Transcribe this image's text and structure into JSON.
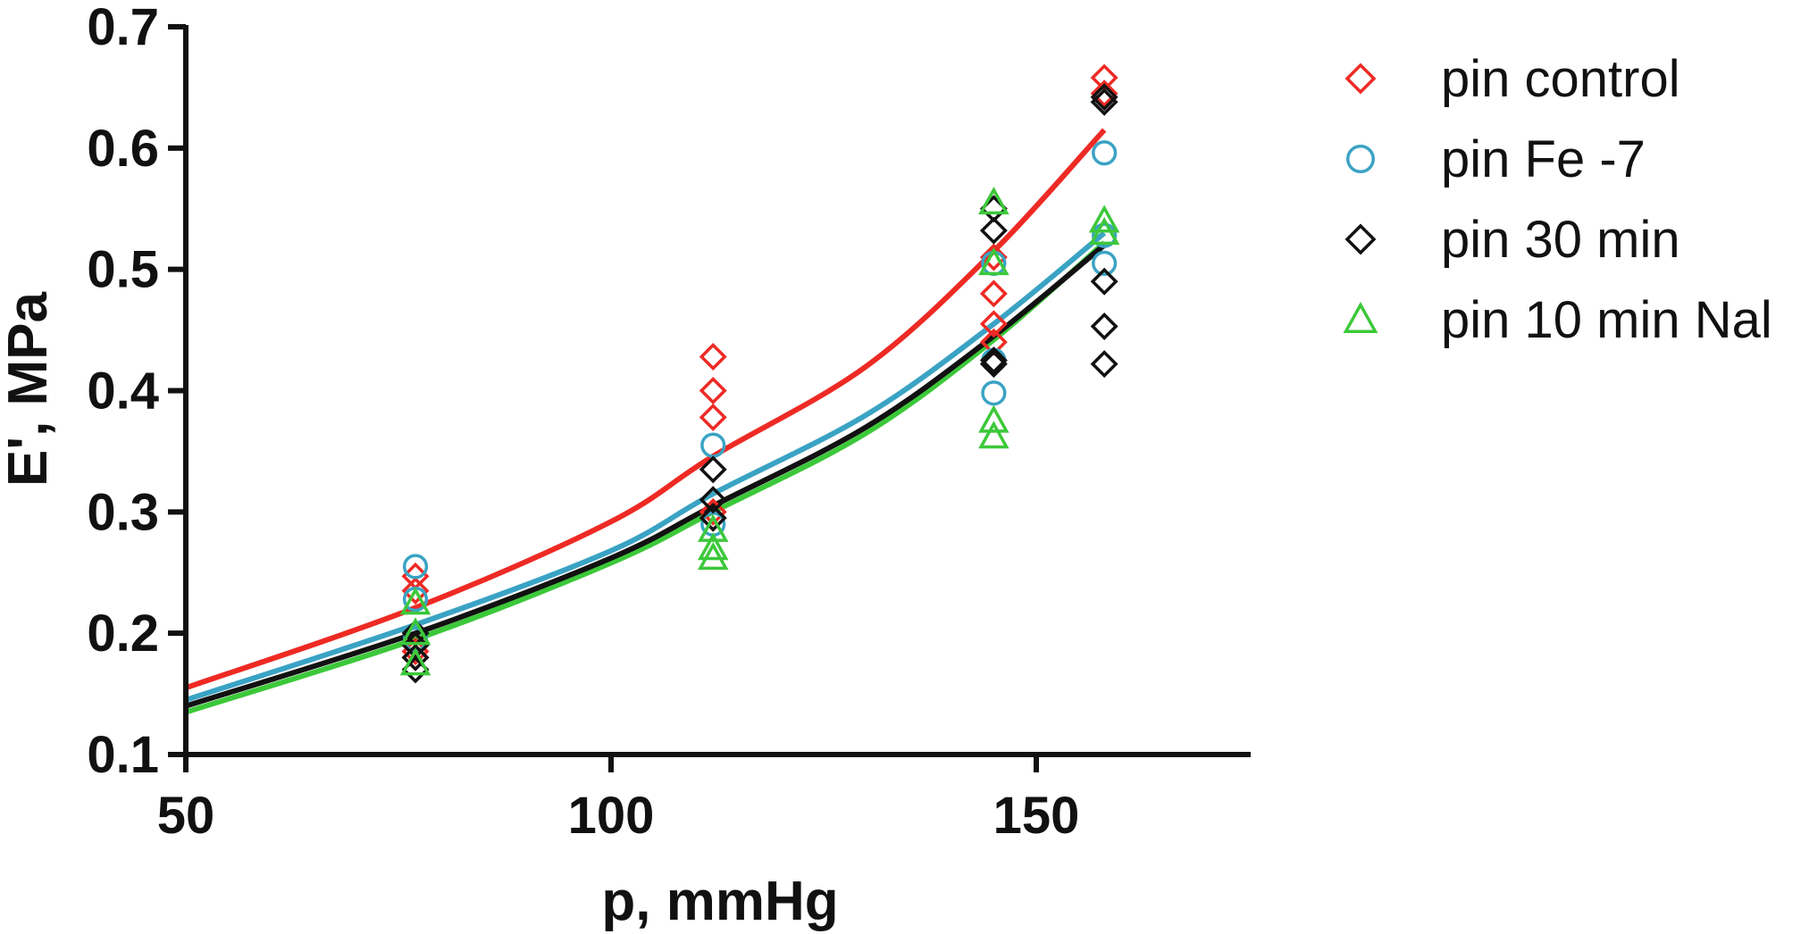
{
  "chart_data": {
    "type": "scatter",
    "title": "",
    "xlabel": "p, mmHg",
    "ylabel": "E', MPa",
    "xlim": [
      50,
      175
    ],
    "ylim": [
      0.1,
      0.7
    ],
    "xticks": [
      50,
      100,
      150
    ],
    "xtick_labels": [
      "50",
      "100",
      "150"
    ],
    "yticks": [
      0.1,
      0.2,
      0.3,
      0.4,
      0.5,
      0.6,
      0.7
    ],
    "ytick_labels": [
      "0.1",
      "0.2",
      "0.3",
      "0.4",
      "0.5",
      "0.6",
      "0.7"
    ],
    "grid": false,
    "legend_position": "right",
    "series": [
      {
        "name": "pin control",
        "marker": "diamond",
        "color": "#ee2a24",
        "points": [
          {
            "x": 77,
            "y": 0.247
          },
          {
            "x": 77,
            "y": 0.235
          },
          {
            "x": 77,
            "y": 0.19
          },
          {
            "x": 77,
            "y": 0.185
          },
          {
            "x": 77,
            "y": 0.18
          },
          {
            "x": 112,
            "y": 0.428
          },
          {
            "x": 112,
            "y": 0.4
          },
          {
            "x": 112,
            "y": 0.378
          },
          {
            "x": 112,
            "y": 0.3
          },
          {
            "x": 112,
            "y": 0.295
          },
          {
            "x": 145,
            "y": 0.51
          },
          {
            "x": 145,
            "y": 0.48
          },
          {
            "x": 145,
            "y": 0.455
          },
          {
            "x": 145,
            "y": 0.44
          },
          {
            "x": 158,
            "y": 0.658
          },
          {
            "x": 158,
            "y": 0.645
          }
        ],
        "fit": [
          {
            "x": 50,
            "y": 0.155
          },
          {
            "x": 77,
            "y": 0.221
          },
          {
            "x": 100,
            "y": 0.292
          },
          {
            "x": 112,
            "y": 0.346
          },
          {
            "x": 130,
            "y": 0.42
          },
          {
            "x": 145,
            "y": 0.515
          },
          {
            "x": 158,
            "y": 0.615
          }
        ]
      },
      {
        "name": "pin Fe -7",
        "marker": "circle",
        "color": "#3aa3c4",
        "points": [
          {
            "x": 77,
            "y": 0.255
          },
          {
            "x": 77,
            "y": 0.228
          },
          {
            "x": 77,
            "y": 0.195
          },
          {
            "x": 112,
            "y": 0.355
          },
          {
            "x": 112,
            "y": 0.29
          },
          {
            "x": 145,
            "y": 0.505
          },
          {
            "x": 145,
            "y": 0.425
          },
          {
            "x": 145,
            "y": 0.398
          },
          {
            "x": 158,
            "y": 0.596
          },
          {
            "x": 158,
            "y": 0.528
          },
          {
            "x": 158,
            "y": 0.505
          }
        ],
        "fit": [
          {
            "x": 50,
            "y": 0.145
          },
          {
            "x": 77,
            "y": 0.207
          },
          {
            "x": 100,
            "y": 0.268
          },
          {
            "x": 112,
            "y": 0.315
          },
          {
            "x": 130,
            "y": 0.38
          },
          {
            "x": 145,
            "y": 0.455
          },
          {
            "x": 158,
            "y": 0.53
          }
        ]
      },
      {
        "name": "pin 30 min",
        "marker": "diamond",
        "color": "#111111",
        "points": [
          {
            "x": 77,
            "y": 0.2
          },
          {
            "x": 77,
            "y": 0.19
          },
          {
            "x": 77,
            "y": 0.18
          },
          {
            "x": 77,
            "y": 0.17
          },
          {
            "x": 112,
            "y": 0.335
          },
          {
            "x": 112,
            "y": 0.31
          },
          {
            "x": 112,
            "y": 0.295
          },
          {
            "x": 145,
            "y": 0.55
          },
          {
            "x": 145,
            "y": 0.532
          },
          {
            "x": 145,
            "y": 0.425
          },
          {
            "x": 145,
            "y": 0.422
          },
          {
            "x": 158,
            "y": 0.642
          },
          {
            "x": 158,
            "y": 0.638
          },
          {
            "x": 158,
            "y": 0.49
          },
          {
            "x": 158,
            "y": 0.453
          },
          {
            "x": 158,
            "y": 0.422
          }
        ],
        "fit": [
          {
            "x": 50,
            "y": 0.14
          },
          {
            "x": 77,
            "y": 0.2
          },
          {
            "x": 100,
            "y": 0.262
          },
          {
            "x": 112,
            "y": 0.305
          },
          {
            "x": 130,
            "y": 0.37
          },
          {
            "x": 145,
            "y": 0.445
          },
          {
            "x": 158,
            "y": 0.52
          }
        ]
      },
      {
        "name": "pin 10 min Nal",
        "marker": "triangle",
        "color": "#3cc83a",
        "points": [
          {
            "x": 77,
            "y": 0.225
          },
          {
            "x": 77,
            "y": 0.2
          },
          {
            "x": 77,
            "y": 0.175
          },
          {
            "x": 112,
            "y": 0.285
          },
          {
            "x": 112,
            "y": 0.27
          },
          {
            "x": 112,
            "y": 0.262
          },
          {
            "x": 145,
            "y": 0.555
          },
          {
            "x": 145,
            "y": 0.505
          },
          {
            "x": 145,
            "y": 0.375
          },
          {
            "x": 145,
            "y": 0.362
          },
          {
            "x": 158,
            "y": 0.54
          },
          {
            "x": 158,
            "y": 0.53
          }
        ],
        "fit": [
          {
            "x": 50,
            "y": 0.135
          },
          {
            "x": 77,
            "y": 0.195
          },
          {
            "x": 100,
            "y": 0.258
          },
          {
            "x": 112,
            "y": 0.3
          },
          {
            "x": 130,
            "y": 0.365
          },
          {
            "x": 145,
            "y": 0.442
          },
          {
            "x": 158,
            "y": 0.522
          }
        ]
      }
    ]
  }
}
